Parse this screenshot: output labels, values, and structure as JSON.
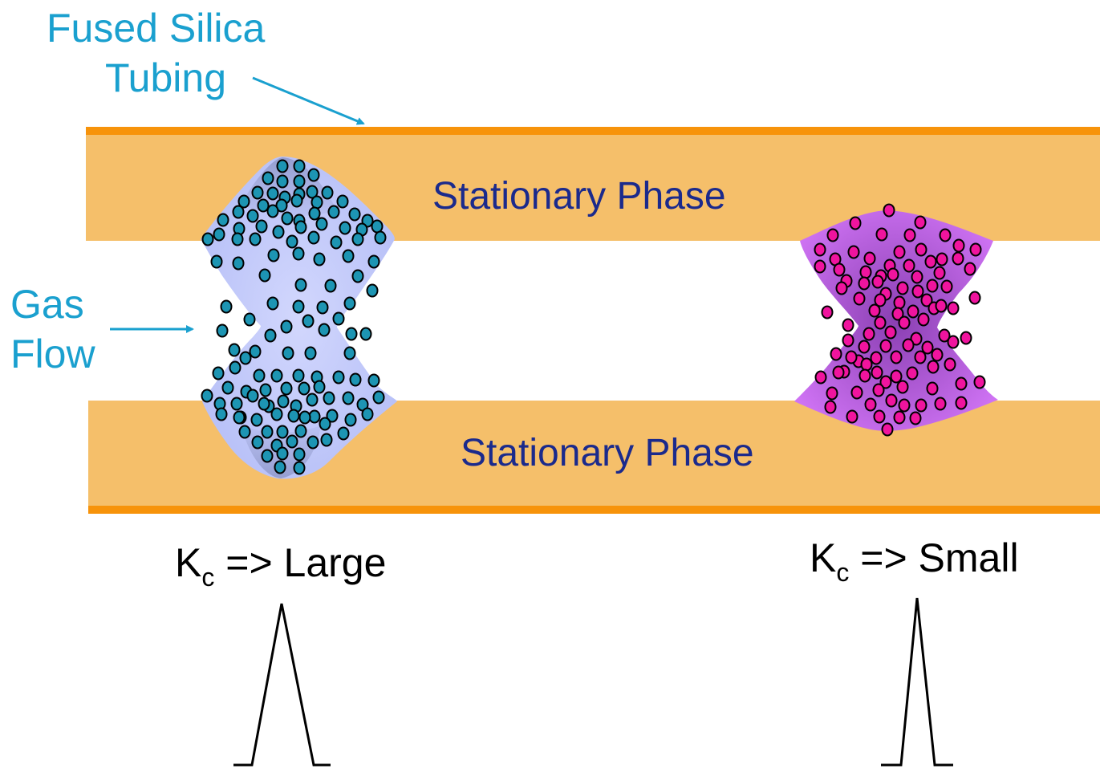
{
  "labels": {
    "tubing_line1": "Fused Silica",
    "tubing_line2": "Tubing",
    "gas_line1": "Gas",
    "gas_line2": "Flow",
    "stationary_top": "Stationary Phase",
    "stationary_bottom": "Stationary Phase",
    "kc_large": {
      "k": "K",
      "sub": "c",
      "rest": " => Large"
    },
    "kc_small": {
      "k": "K",
      "sub": "c",
      "rest": " => Small"
    }
  },
  "colors": {
    "label_cyan": "#1aa0cf",
    "label_navy": "#1b2a8c",
    "tube_wall": "#f7930a",
    "stationary_fill": "#f5bf6a",
    "large_cloud": "#c3c9fb",
    "large_dot": "#1d95b3",
    "small_cloud": "#c96bf2",
    "small_dot": "#f0149e"
  }
}
